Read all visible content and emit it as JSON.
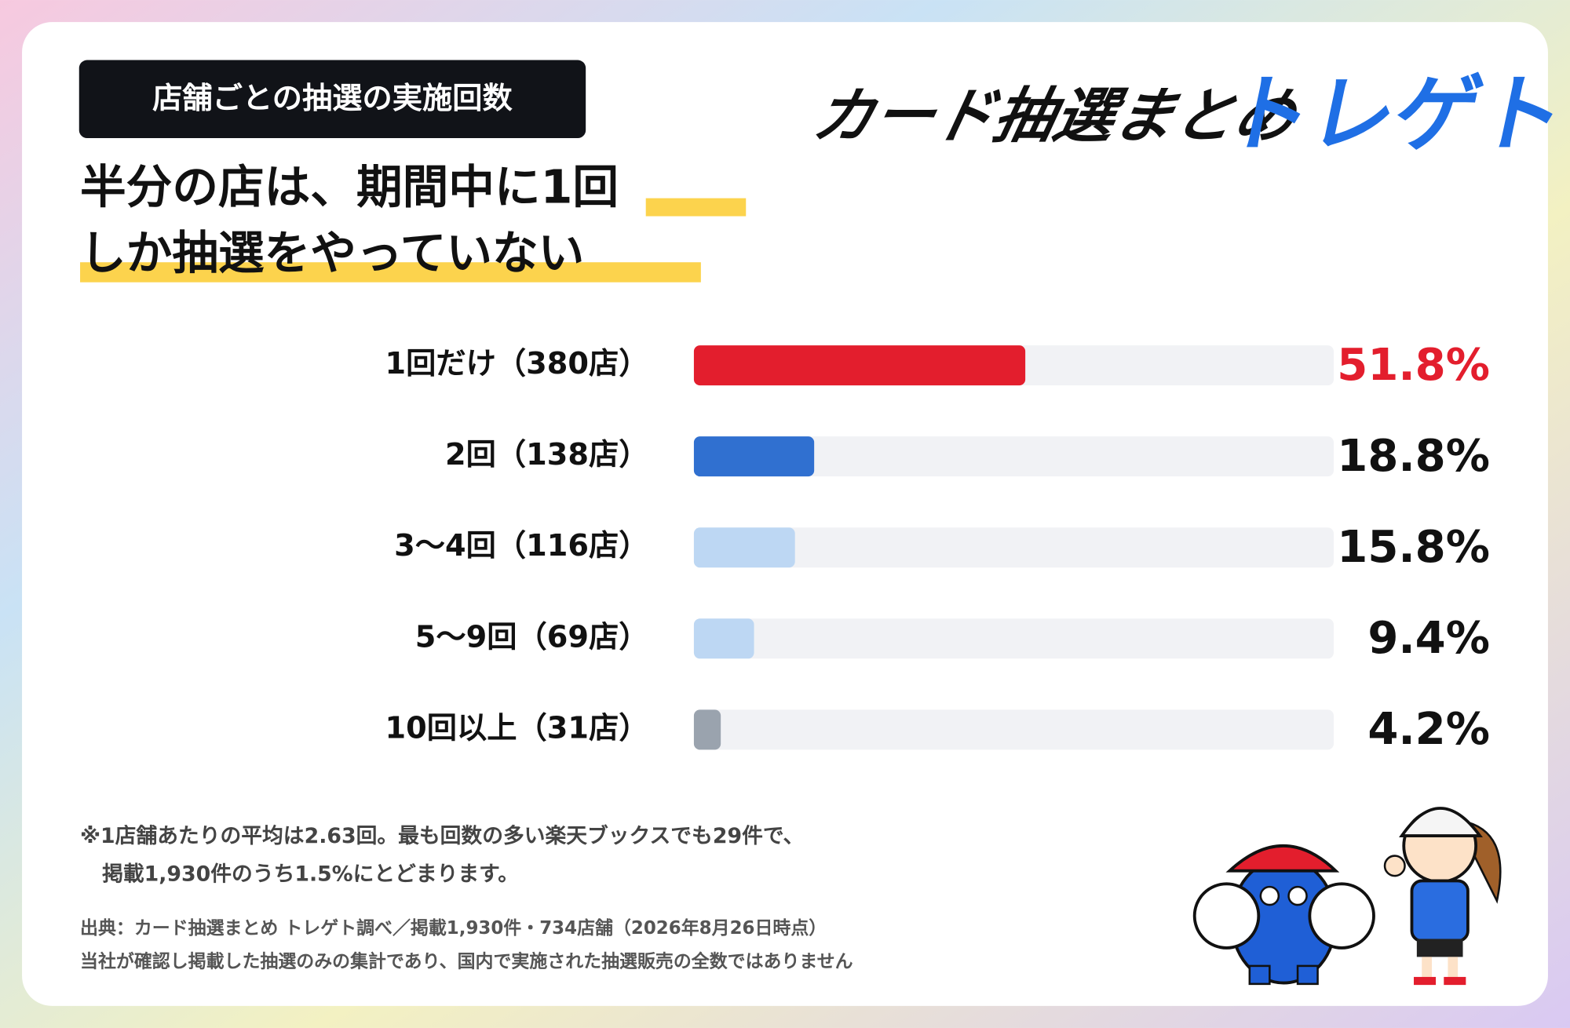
{
  "tag": "店舗ごとの抽選の実施回数",
  "headline": [
    "半分の店は、期間中に1回",
    "しか抽選をやっていない"
  ],
  "logo": {
    "text": "カード抽選まとめ",
    "brand": "トレゲト"
  },
  "chart_data": {
    "type": "bar",
    "orientation": "horizontal",
    "categories": [
      "1回だけ（380店）",
      "2回（138店）",
      "3〜4回（116店）",
      "5〜9回（69店）",
      "10回以上（31店）"
    ],
    "values": [
      51.8,
      18.8,
      15.8,
      9.4,
      4.2
    ],
    "value_labels": [
      "51.8%",
      "18.8%",
      "15.8%",
      "9.4%",
      "4.2%"
    ],
    "colors": [
      "#e31e2d",
      "#3070d0",
      "#bdd7f3",
      "#bdd7f3",
      "#9aa3ae"
    ],
    "value_label_colors": [
      "#e31e2d",
      "#111111",
      "#111111",
      "#111111",
      "#111111"
    ],
    "xlim": [
      0,
      100
    ]
  },
  "notes": [
    "※1店舗あたりの平均は2.63回。最も回数の多い楽天ブックスでも29件で、",
    "掲載1,930件のうち1.5%にとどまります。"
  ],
  "source": [
    "出典：カード抽選まとめ トレゲト調べ／掲載1,930件・734店舗（2026年8月26日時点）",
    "当社が確認し掲載した抽選のみの集計であり、国内で実施された抽選販売の全数ではありません"
  ]
}
